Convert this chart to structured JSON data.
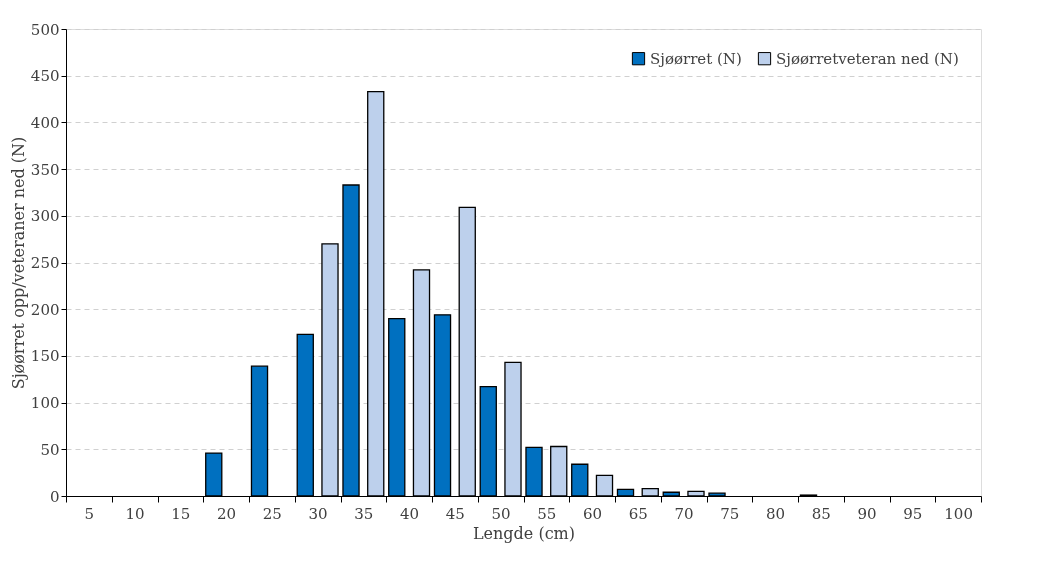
{
  "chart_data": {
    "type": "bar",
    "xlabel": "Lengde (cm)",
    "ylabel": "Sjøørret opp/veteraner ned (N)",
    "categories": [
      "5",
      "10",
      "15",
      "20",
      "25",
      "30",
      "35",
      "40",
      "45",
      "50",
      "55",
      "60",
      "65",
      "70",
      "75",
      "80",
      "85",
      "90",
      "95",
      "100"
    ],
    "series": [
      {
        "name": "Sjøørret (N)",
        "color": "#0070c0",
        "values": [
          0,
          0,
          0,
          46,
          139,
          173,
          333,
          190,
          194,
          117,
          52,
          34,
          7,
          4,
          3,
          0,
          1,
          0,
          0,
          0
        ]
      },
      {
        "name": "Sjøørretveteran ned (N)",
        "color": "#bdd0ec",
        "values": [
          0,
          0,
          0,
          0,
          0,
          270,
          433,
          242,
          309,
          143,
          53,
          22,
          8,
          5,
          0,
          0,
          0,
          0,
          0,
          0
        ]
      }
    ],
    "ylim": [
      0,
      500
    ],
    "yticks": [
      0,
      50,
      100,
      150,
      200,
      250,
      300,
      350,
      400,
      450,
      500
    ],
    "grid": "y",
    "legend": "top right"
  }
}
